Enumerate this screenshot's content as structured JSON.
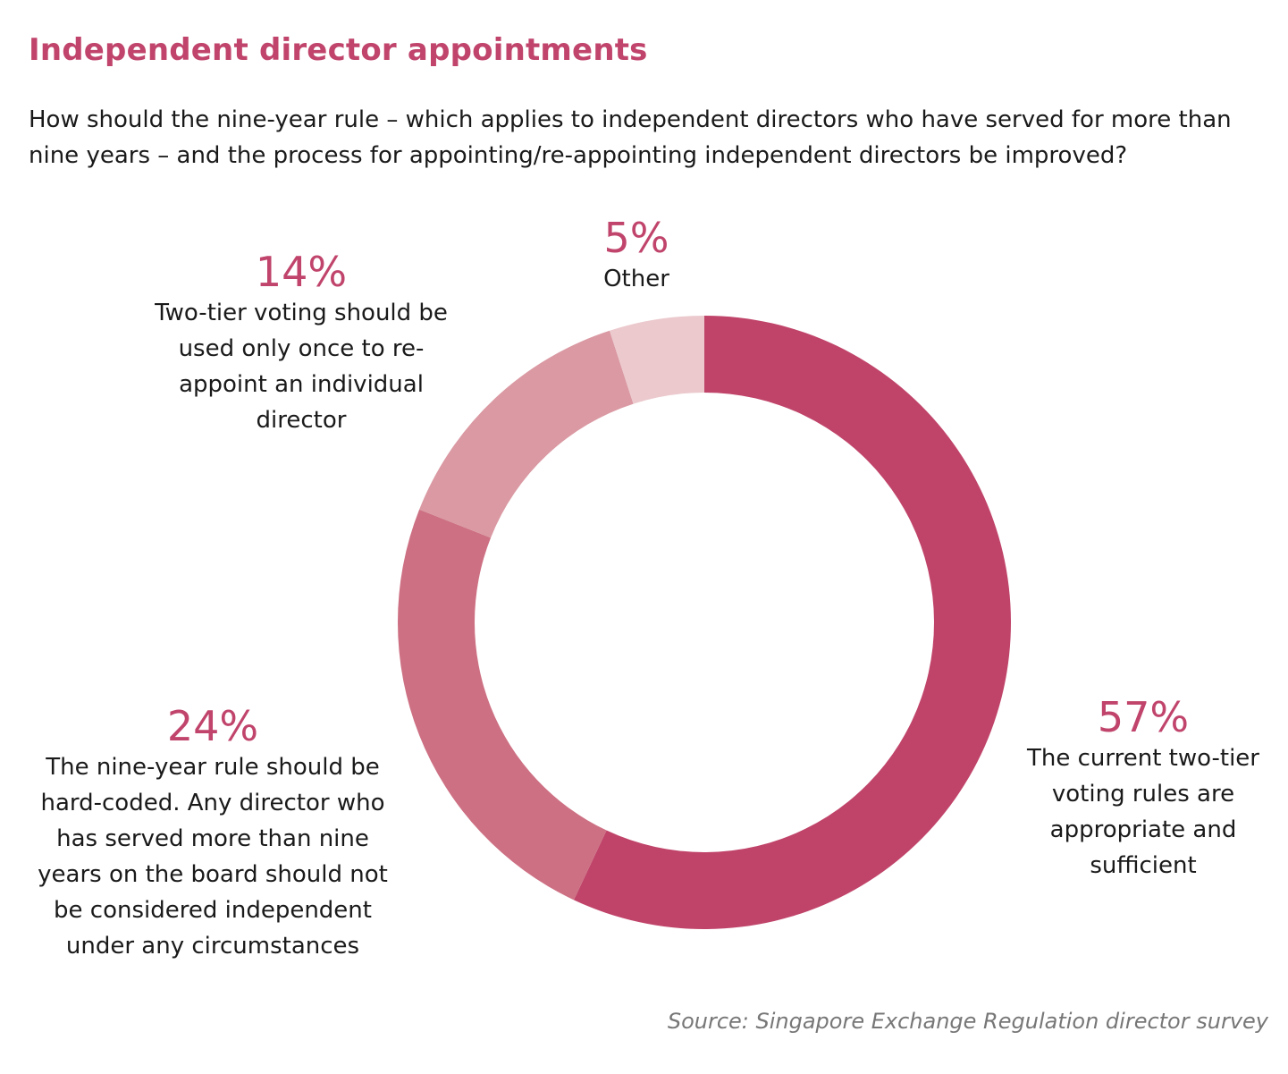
{
  "chart_data": {
    "type": "pie",
    "title": "Independent director appointments",
    "subtitle": "How should the nine-year rule – which applies to independent directors who have served for more than nine years – and the process for appointing/re-appointing independent directors be improved?",
    "donut": true,
    "slices": [
      {
        "label": "57%",
        "value": 57,
        "text": "The current two-tier voting rules are appropriate and sufficient",
        "color": "#c0446a"
      },
      {
        "label": "24%",
        "value": 24,
        "text": "The nine-year rule should be hard-coded. Any director who has served more than nine years on the board should not be considered independent under any circumstances",
        "color": "#cd7083"
      },
      {
        "label": "14%",
        "value": 14,
        "text": "Two-tier voting should be used only once to re-appoint an individual director",
        "color": "#da99a3"
      },
      {
        "label": "5%",
        "value": 5,
        "text": "Other",
        "color": "#ebc9cd"
      }
    ],
    "source": "Source: Singapore Exchange Regulation director survey"
  }
}
